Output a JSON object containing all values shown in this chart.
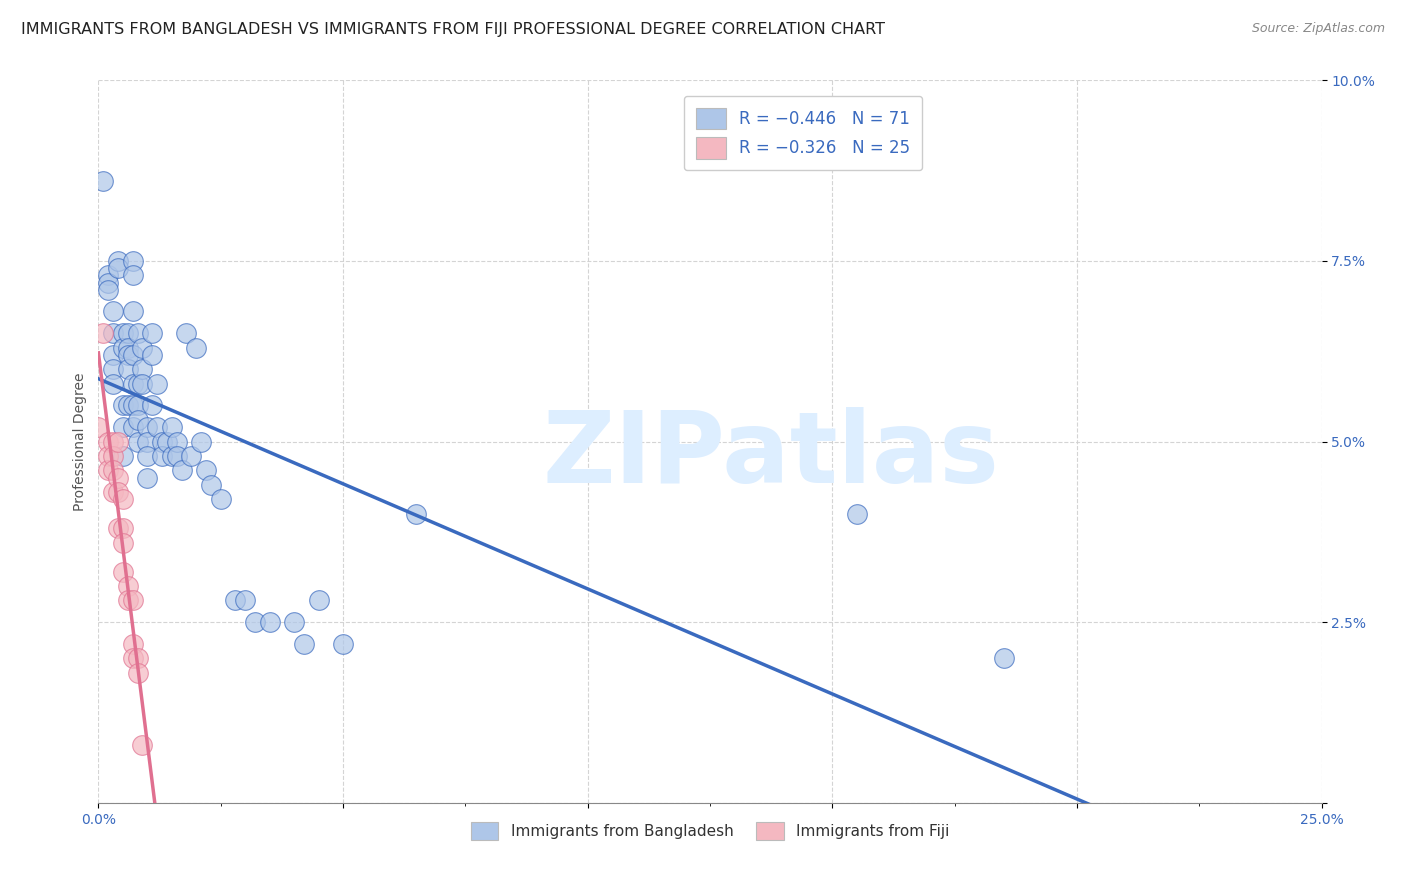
{
  "title": "IMMIGRANTS FROM BANGLADESH VS IMMIGRANTS FROM FIJI PROFESSIONAL DEGREE CORRELATION CHART",
  "source": "Source: ZipAtlas.com",
  "ylabel": "Professional Degree",
  "xlim": [
    0.0,
    0.25
  ],
  "ylim": [
    0.0,
    0.1
  ],
  "xticks": [
    0.0,
    0.05,
    0.1,
    0.15,
    0.2,
    0.25
  ],
  "xtick_labels": [
    "0.0%",
    "",
    "",
    "",
    "",
    "25.0%"
  ],
  "yticks": [
    0.0,
    0.025,
    0.05,
    0.075,
    0.1
  ],
  "ytick_labels": [
    "",
    "2.5%",
    "5.0%",
    "7.5%",
    "10.0%"
  ],
  "legend_entries": [
    {
      "label": "R = −0.446   N = 71",
      "color": "#aec6e8"
    },
    {
      "label": "R = −0.326   N = 25",
      "color": "#f4b8c1"
    }
  ],
  "bangladesh_color": "#aec6e8",
  "fiji_color": "#f4b8c1",
  "regression_bangladesh_color": "#3a6abf",
  "regression_fiji_color": "#e07090",
  "bangladesh_x": [
    0.001,
    0.002,
    0.002,
    0.002,
    0.003,
    0.003,
    0.003,
    0.003,
    0.003,
    0.004,
    0.004,
    0.005,
    0.005,
    0.005,
    0.005,
    0.005,
    0.006,
    0.006,
    0.006,
    0.006,
    0.006,
    0.007,
    0.007,
    0.007,
    0.007,
    0.007,
    0.007,
    0.007,
    0.008,
    0.008,
    0.008,
    0.008,
    0.008,
    0.009,
    0.009,
    0.009,
    0.01,
    0.01,
    0.01,
    0.01,
    0.011,
    0.011,
    0.011,
    0.012,
    0.012,
    0.013,
    0.013,
    0.014,
    0.015,
    0.015,
    0.016,
    0.016,
    0.017,
    0.018,
    0.019,
    0.02,
    0.021,
    0.022,
    0.023,
    0.025,
    0.028,
    0.03,
    0.032,
    0.035,
    0.04,
    0.042,
    0.045,
    0.05,
    0.065,
    0.155,
    0.185
  ],
  "bangladesh_y": [
    0.086,
    0.073,
    0.072,
    0.071,
    0.068,
    0.065,
    0.062,
    0.06,
    0.058,
    0.075,
    0.074,
    0.065,
    0.063,
    0.055,
    0.052,
    0.048,
    0.065,
    0.063,
    0.062,
    0.06,
    0.055,
    0.075,
    0.073,
    0.068,
    0.062,
    0.058,
    0.055,
    0.052,
    0.065,
    0.058,
    0.055,
    0.053,
    0.05,
    0.063,
    0.06,
    0.058,
    0.052,
    0.05,
    0.048,
    0.045,
    0.065,
    0.062,
    0.055,
    0.058,
    0.052,
    0.05,
    0.048,
    0.05,
    0.052,
    0.048,
    0.05,
    0.048,
    0.046,
    0.065,
    0.048,
    0.063,
    0.05,
    0.046,
    0.044,
    0.042,
    0.028,
    0.028,
    0.025,
    0.025,
    0.025,
    0.022,
    0.028,
    0.022,
    0.04,
    0.04,
    0.02
  ],
  "fiji_x": [
    0.0,
    0.001,
    0.002,
    0.002,
    0.002,
    0.003,
    0.003,
    0.003,
    0.003,
    0.004,
    0.004,
    0.004,
    0.004,
    0.005,
    0.005,
    0.005,
    0.005,
    0.006,
    0.006,
    0.007,
    0.007,
    0.007,
    0.008,
    0.008,
    0.009
  ],
  "fiji_y": [
    0.052,
    0.065,
    0.05,
    0.048,
    0.046,
    0.05,
    0.048,
    0.046,
    0.043,
    0.05,
    0.045,
    0.043,
    0.038,
    0.042,
    0.038,
    0.036,
    0.032,
    0.03,
    0.028,
    0.028,
    0.022,
    0.02,
    0.02,
    0.018,
    0.008
  ],
  "watermark_text": "ZIPatlas",
  "background_color": "#ffffff",
  "grid_color": "#d0d0d0",
  "title_fontsize": 11.5,
  "axis_fontsize": 10,
  "tick_fontsize": 10
}
